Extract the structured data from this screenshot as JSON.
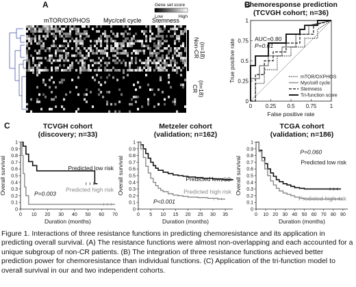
{
  "panels": {
    "a": "A",
    "b": "B",
    "c": "C"
  },
  "heatmap": {
    "groups": [
      "mTOR/OXPHOS",
      "Myc/cell cycle",
      "Stemness"
    ],
    "legend": {
      "title": "Gene set score",
      "low": "Low",
      "high": "High"
    },
    "row_groups": [
      {
        "name": "Non-CR",
        "n": "(n=18)"
      },
      {
        "name": "CR",
        "n": "(n=18)"
      }
    ]
  },
  "chart_data": [
    {
      "type": "line",
      "subtype": "roc",
      "title": "Chemoresponse prediction",
      "subtitle": "(TCVGH cohort; n=36)",
      "xlabel": "False positive rate",
      "ylabel": "True positive rate",
      "xlim": [
        0,
        1
      ],
      "ylim": [
        0,
        1
      ],
      "xticks": [
        "0",
        "0.25",
        "0.5",
        "0.75",
        "1"
      ],
      "yticks": [
        "0",
        "0.25",
        "0.5",
        "0.75",
        "1"
      ],
      "annotations": [
        "AUC=0.80",
        "P=0.01"
      ],
      "legend_position": "bottom-right",
      "series": [
        {
          "name": "mTOR/OXPHOS",
          "style": "dotted",
          "x": [
            0,
            0.06,
            0.06,
            0.17,
            0.17,
            0.33,
            0.33,
            0.5,
            0.5,
            0.67,
            0.67,
            0.83,
            0.83,
            1
          ],
          "y": [
            0,
            0,
            0.22,
            0.22,
            0.39,
            0.39,
            0.56,
            0.56,
            0.67,
            0.67,
            0.78,
            0.78,
            0.89,
            1
          ]
        },
        {
          "name": "Myc/cell cycle",
          "style": "thin",
          "x": [
            0,
            0,
            0.11,
            0.11,
            0.22,
            0.22,
            0.39,
            0.39,
            0.56,
            0.56,
            0.72,
            0.72,
            1
          ],
          "y": [
            0,
            0.28,
            0.28,
            0.44,
            0.44,
            0.56,
            0.56,
            0.67,
            0.67,
            0.83,
            0.83,
            0.94,
            1
          ]
        },
        {
          "name": "Stemness",
          "style": "dashed",
          "x": [
            0,
            0.06,
            0.06,
            0.17,
            0.17,
            0.28,
            0.28,
            0.44,
            0.44,
            0.61,
            0.61,
            0.78,
            0.78,
            1
          ],
          "y": [
            0,
            0,
            0.33,
            0.33,
            0.5,
            0.5,
            0.61,
            0.61,
            0.72,
            0.72,
            0.83,
            0.83,
            0.94,
            1
          ]
        },
        {
          "name": "Tri-function score",
          "style": "bold",
          "x": [
            0,
            0,
            0.06,
            0.06,
            0.22,
            0.22,
            0.44,
            0.44,
            0.61,
            0.61,
            0.67,
            0.67,
            0.83,
            0.83,
            1
          ],
          "y": [
            0,
            0.44,
            0.44,
            0.56,
            0.56,
            0.72,
            0.72,
            0.83,
            0.83,
            0.89,
            0.89,
            0.94,
            0.94,
            1,
            1
          ]
        }
      ]
    },
    {
      "type": "line",
      "subtype": "kaplan-meier",
      "title": "TCVGH cohort",
      "subtitle": "(discovery; n=33)",
      "xlabel": "Duration (months)",
      "ylabel": "Overall survival",
      "xlim": [
        0,
        70
      ],
      "ylim": [
        0,
        1
      ],
      "xticks": [
        "0",
        "10",
        "20",
        "30",
        "40",
        "50",
        "60",
        "70"
      ],
      "yticks": [
        "0",
        "0.1",
        "0.2",
        "0.3",
        "0.4",
        "0.5",
        "0.6",
        "0.7",
        "0.8",
        "0.9",
        "1"
      ],
      "annotations": [
        "P=0.003"
      ],
      "series": [
        {
          "name": "Predicted low risk",
          "color": "#111111",
          "x": [
            0,
            2,
            2,
            4,
            4,
            6,
            6,
            9,
            9,
            12,
            12,
            55,
            55,
            57
          ],
          "y": [
            1,
            1,
            0.94,
            0.94,
            0.82,
            0.82,
            0.71,
            0.71,
            0.65,
            0.65,
            0.57,
            0.57,
            0.38,
            0.38
          ]
        },
        {
          "name": "Predicted high risk",
          "color": "#888888",
          "x": [
            0,
            1,
            1,
            2,
            2,
            3,
            3,
            4,
            4,
            6,
            6,
            70
          ],
          "y": [
            1,
            1,
            0.8,
            0.8,
            0.53,
            0.53,
            0.33,
            0.33,
            0.2,
            0.2,
            0.07,
            0.07
          ]
        }
      ]
    },
    {
      "type": "line",
      "subtype": "kaplan-meier",
      "title": "Metzeler cohort",
      "subtitle": "(validation; n=162)",
      "xlabel": "Duration (months)",
      "ylabel": "Overall survival",
      "xlim": [
        0,
        38
      ],
      "ylim": [
        0,
        1
      ],
      "xticks": [
        "0",
        "5",
        "10",
        "15",
        "20",
        "25",
        "30",
        "35"
      ],
      "yticks": [
        "0",
        "0.1",
        "0.2",
        "0.3",
        "0.4",
        "0.5",
        "0.6",
        "0.7",
        "0.8",
        "0.9",
        "1"
      ],
      "annotations": [
        "P<0.001"
      ],
      "series": [
        {
          "name": "Predicted low risk",
          "color": "#111111",
          "x": [
            0,
            1,
            2,
            3,
            4,
            5,
            6,
            7,
            8,
            10,
            12,
            14,
            16,
            18,
            20,
            23,
            26,
            30,
            34,
            38
          ],
          "y": [
            1,
            0.96,
            0.9,
            0.83,
            0.76,
            0.7,
            0.65,
            0.61,
            0.58,
            0.55,
            0.53,
            0.51,
            0.5,
            0.49,
            0.48,
            0.47,
            0.46,
            0.45,
            0.44,
            0.43
          ]
        },
        {
          "name": "Predicted high risk",
          "color": "#888888",
          "x": [
            0,
            1,
            2,
            3,
            4,
            5,
            6,
            7,
            8,
            9,
            10,
            12,
            14,
            16,
            18,
            20,
            24,
            28,
            32,
            35
          ],
          "y": [
            1,
            0.9,
            0.77,
            0.64,
            0.54,
            0.46,
            0.4,
            0.35,
            0.31,
            0.28,
            0.26,
            0.23,
            0.21,
            0.2,
            0.19,
            0.18,
            0.17,
            0.16,
            0.15,
            0.15
          ]
        }
      ]
    },
    {
      "type": "line",
      "subtype": "kaplan-meier",
      "title": "TCGA cohort",
      "subtitle": "(validation; n=186)",
      "xlabel": "Duration (months)",
      "ylabel": "Overall survival",
      "xlim": [
        0,
        95
      ],
      "ylim": [
        0,
        1
      ],
      "xticks": [
        "0",
        "10",
        "20",
        "30",
        "40",
        "50",
        "60",
        "70",
        "80",
        "90"
      ],
      "yticks": [
        "0",
        "0.1",
        "0.2",
        "0.3",
        "0.4",
        "0.5",
        "0.6",
        "0.7",
        "0.8",
        "0.9",
        "1"
      ],
      "annotations": [
        "P=0.060"
      ],
      "series": [
        {
          "name": "Predicted low risk",
          "color": "#111111",
          "x": [
            0,
            3,
            6,
            9,
            12,
            15,
            18,
            21,
            24,
            28,
            32,
            36,
            40,
            45,
            50,
            60,
            70,
            80,
            88
          ],
          "y": [
            1,
            0.88,
            0.77,
            0.68,
            0.6,
            0.54,
            0.49,
            0.44,
            0.41,
            0.38,
            0.36,
            0.34,
            0.32,
            0.31,
            0.3,
            0.3,
            0.3,
            0.3,
            0.3
          ]
        },
        {
          "name": "Predicted high risk",
          "color": "#888888",
          "x": [
            0,
            3,
            6,
            9,
            12,
            15,
            18,
            21,
            24,
            28,
            32,
            36,
            40,
            45,
            50,
            60,
            70,
            80,
            90
          ],
          "y": [
            1,
            0.86,
            0.72,
            0.6,
            0.5,
            0.42,
            0.36,
            0.31,
            0.27,
            0.24,
            0.22,
            0.2,
            0.18,
            0.16,
            0.15,
            0.15,
            0.15,
            0.15,
            0.15
          ]
        }
      ]
    }
  ],
  "caption": {
    "lines": [
      "Figure 1. Interactions of three resistance functions in predicting chemoresistance and its application in predicting",
      "overall survival. (A) The resistance functions were almost non-overlapping and each accounted for a unique",
      "subgroup of non-CR patients. (B) The integration of three resistance functions achieved better prediction power",
      "for chemoresistance than individual functions. (C) Application of the tri-function model to overall survival in our",
      "and two independent cohorts."
    ]
  }
}
